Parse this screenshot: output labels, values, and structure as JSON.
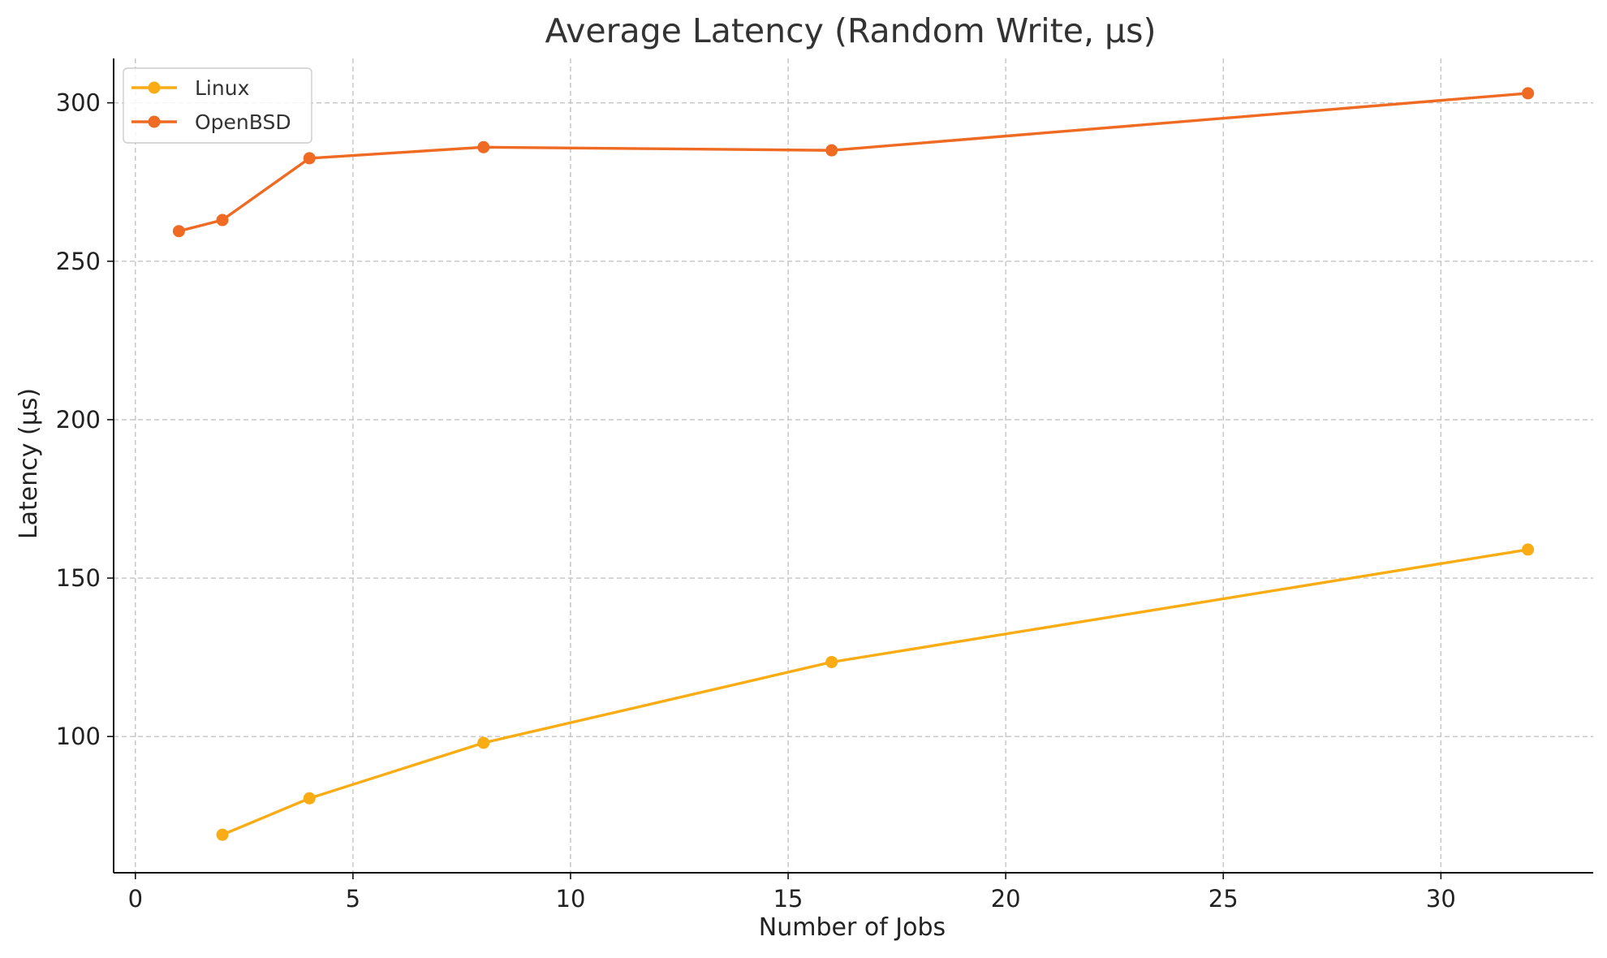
{
  "chart_data": {
    "type": "line",
    "title": "Average Latency (Random Write, µs)",
    "xlabel": "Number of Jobs",
    "ylabel": "Latency (µs)",
    "xlim": [
      -0.5,
      33.5
    ],
    "ylim": [
      57,
      314
    ],
    "xticks": [
      0,
      5,
      10,
      15,
      20,
      25,
      30
    ],
    "yticks": [
      100,
      150,
      200,
      250,
      300
    ],
    "grid": true,
    "legend_position": "top-left",
    "series": [
      {
        "name": "Linux",
        "color": "#F9AC14",
        "points": [
          {
            "x": 2,
            "y": 69
          },
          {
            "x": 4,
            "y": 80.5
          },
          {
            "x": 8,
            "y": 98
          },
          {
            "x": 16,
            "y": 123.5
          },
          {
            "x": 32,
            "y": 159
          }
        ]
      },
      {
        "name": "OpenBSD",
        "color": "#EF6A22",
        "points": [
          {
            "x": 1,
            "y": 259.5
          },
          {
            "x": 2,
            "y": 263
          },
          {
            "x": 4,
            "y": 282.5
          },
          {
            "x": 8,
            "y": 286
          },
          {
            "x": 16,
            "y": 285
          },
          {
            "x": 32,
            "y": 303
          }
        ]
      }
    ]
  }
}
